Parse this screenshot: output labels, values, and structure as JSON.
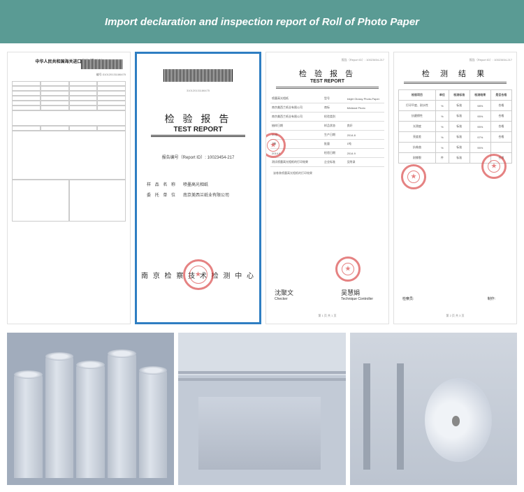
{
  "header": {
    "title": "Import declaration and inspection report of Roll of Photo Paper",
    "background_color": "#5a9b94",
    "text_color": "#ffffff"
  },
  "doc1": {
    "title": "中华人民共和国海关进口货物报关单",
    "serial_prefix": "编号:",
    "serial": "310120131186475"
  },
  "doc2": {
    "title_cn": "检 验 报 告",
    "title_en": "TEST REPORT",
    "report_id_label": "报告编号（Report ID）:",
    "report_id": "10023454-217",
    "sample_name_label": "样 品 名 称",
    "sample_name": "喷墨高光相纸",
    "client_label": "委 托 单 位",
    "client": "南京美西兰纸业有限公司",
    "center_name": "南 京 检 察 技 术 检 测 中 心",
    "highlight_color": "#2f7ec2"
  },
  "doc3": {
    "title_cn": "检 验 报 告",
    "title_en": "TEST REPORT",
    "report_id_label": "报告（Report ID）:",
    "report_id": "10023454-217",
    "rows": [
      {
        "k": "喷墨高光相纸",
        "v1": "型号",
        "v2": "Inkjet Glossy Photo-Paper"
      },
      {
        "k": "南京美西兰纸业有限公司",
        "v1": "商标",
        "v2": "Mixiland Photo"
      },
      {
        "k": "南京美西兰纸业有限公司",
        "v1": "检验类别",
        "v2": ""
      },
      {
        "k": "抽样日期",
        "v1": "样品状态",
        "v2": "良好"
      },
      {
        "k": "30卷",
        "v1": "生产日期",
        "v2": "2014.8"
      },
      {
        "k": "3卷",
        "v1": "批量",
        "v2": "1吨"
      },
      {
        "k": "2014.9",
        "v1": "检验日期",
        "v2": "2014.9"
      },
      {
        "k": "测试喷墨高光相纸的打印效果",
        "v1": "企业标准",
        "v2": "见附录"
      }
    ],
    "note": "该卷装喷墨高光相纸的打印效果",
    "checker_label": "Checker",
    "checker_sig": "沈聚文",
    "tech_label": "Technique Controller",
    "tech_sig": "吴慧娟",
    "footer": "第 1 页 共 1 页"
  },
  "doc4": {
    "title_cn": "检 测 结 果",
    "report_id_label": "报告（Report ID）:",
    "report_id": "10023454-217",
    "columns": [
      "检验项目",
      "单位",
      "检测标准",
      "检测结果",
      "是否合格"
    ],
    "rows": [
      [
        "打印平度、耐水性",
        "%",
        "标准",
        "98%",
        "合格"
      ],
      [
        "抗磨擦性",
        "%",
        "标准",
        "95%",
        "合格"
      ],
      [
        "光滑度",
        "%",
        "标准",
        "95%",
        "合格"
      ],
      [
        "亮度差",
        "%",
        "标准",
        "97%",
        "合格"
      ],
      [
        "抗卷曲",
        "%",
        "标准",
        "95%",
        ""
      ],
      [
        "耐撕裂",
        "件",
        "标准",
        "",
        "合格"
      ]
    ],
    "checker_label": "检察员:",
    "producer_label": "制作:",
    "footer": "第 2 页 共 3 页"
  },
  "styling": {
    "body_width": 750,
    "body_height": 704,
    "stamp_color": "#d84040",
    "photo_tint": "#c5ccd6",
    "doc_border": "#e0e0e0"
  }
}
